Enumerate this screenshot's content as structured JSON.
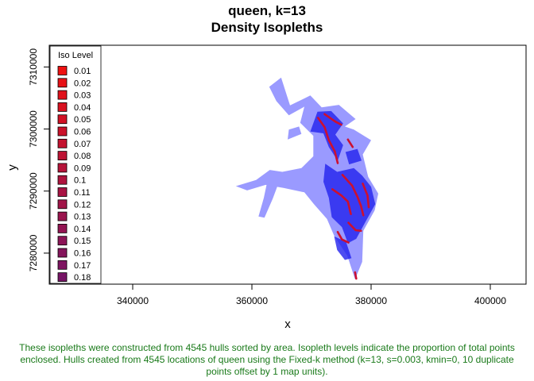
{
  "chart_data": {
    "type": "map",
    "title": "queen, k=13",
    "subtitle": "Density Isopleths",
    "xlabel": "x",
    "ylabel": "y",
    "xlim": [
      326000,
      406000
    ],
    "ylim": [
      7275000,
      7313500
    ],
    "x_ticks": [
      340000,
      360000,
      380000,
      400000
    ],
    "y_ticks": [
      7280000,
      7290000,
      7300000,
      7310000
    ],
    "grid": false,
    "legend": {
      "title": "Iso Level",
      "position": "top-left",
      "levels": [
        "0.01",
        "0.02",
        "0.03",
        "0.04",
        "0.05",
        "0.06",
        "0.07",
        "0.08",
        "0.09",
        "0.1",
        "0.11",
        "0.12",
        "0.13",
        "0.14",
        "0.15",
        "0.16",
        "0.17",
        "0.18"
      ],
      "colors": [
        "#ee1111",
        "#e71116",
        "#e0111b",
        "#d91220",
        "#d21225",
        "#cb122a",
        "#c4122f",
        "#bd1334",
        "#b61339",
        "#af133e",
        "#a81343",
        "#a11448",
        "#9a144d",
        "#931452",
        "#8c1457",
        "#85155c",
        "#7e1561",
        "#771566"
      ]
    },
    "layers": [
      {
        "name": "outer hull",
        "color": "#9a9aff"
      },
      {
        "name": "inner hulls",
        "color": "#2222ee"
      },
      {
        "name": "core",
        "color": "#cc1030"
      }
    ]
  },
  "caption": "These isopleths were constructed from 4545 hulls sorted by area. Isopleth levels indicate the proportion of total points enclosed. Hulls created from 4545 locations of queen using the Fixed-k method (k=13, s=0.003, kmin=0, 10 duplicate points offset by 1 map units)."
}
